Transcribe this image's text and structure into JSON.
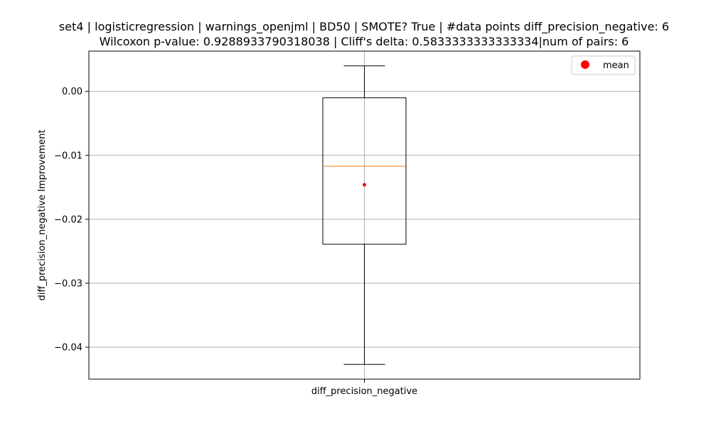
{
  "chart_data": {
    "type": "box",
    "title_lines": [
      "set4 | logisticregression | warnings_openjml | BD50 | SMOTE? True | #data points diff_precision_negative: 6",
      "Wilcoxon p-value: 0.9288933790318038 | Cliff's delta: 0.5833333333333334|num of pairs: 6"
    ],
    "xlabel": "",
    "ylabel": "diff_precision_negative Improvement",
    "categories": [
      "diff_precision_negative"
    ],
    "ylim": [
      -0.045,
      0.0063
    ],
    "yticks": [
      0.0,
      -0.01,
      -0.02,
      -0.03,
      -0.04
    ],
    "ytick_labels": [
      "0.00",
      "−0.01",
      "−0.02",
      "−0.03",
      "−0.04"
    ],
    "box": {
      "whisker_low": -0.0427,
      "q1": -0.0239,
      "median": -0.0117,
      "q3": -0.001,
      "whisker_high": 0.004,
      "mean": -0.0146
    },
    "grid": true,
    "legend": {
      "position": "top-right",
      "entries": [
        "mean"
      ]
    },
    "colors": {
      "box": "#000000",
      "median": "#ff7f0e",
      "mean": "#ff0000",
      "grid": "#b0b0b0"
    }
  }
}
